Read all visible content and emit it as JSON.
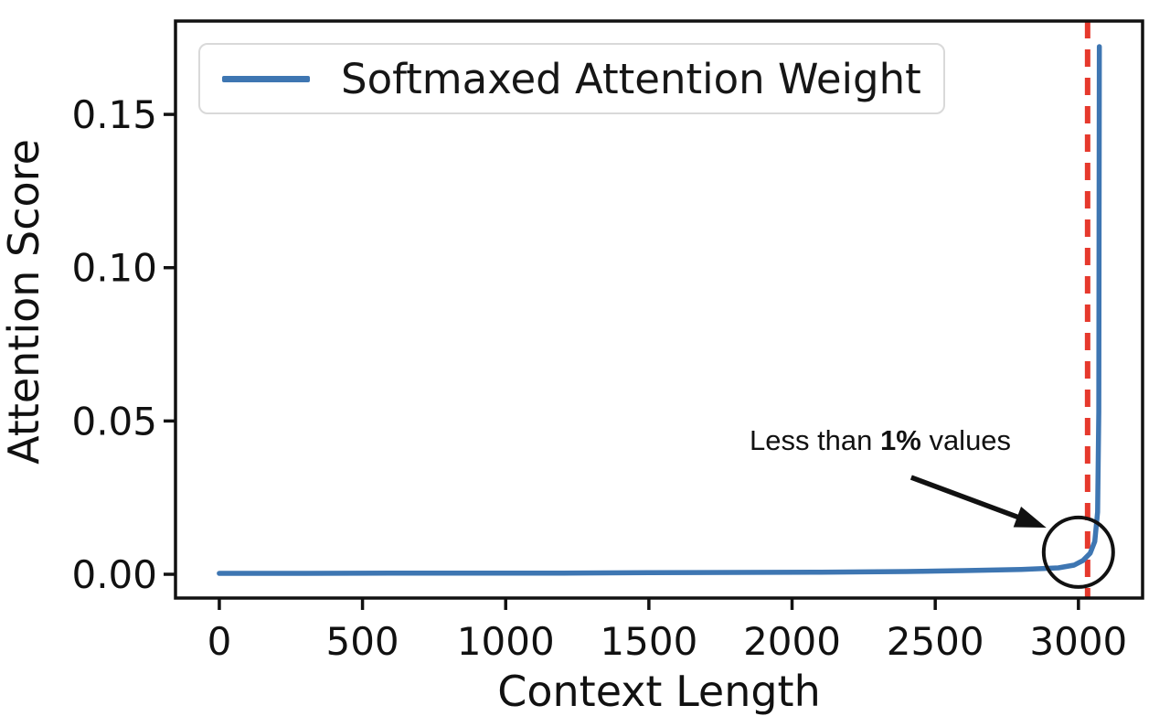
{
  "chart_data": {
    "type": "line",
    "title": "",
    "xlabel": "Context Length",
    "ylabel": "Attention Score",
    "xlim": [
      -153,
      3224
    ],
    "ylim": [
      -0.00775,
      0.18045
    ],
    "xticks": {
      "values": [
        0,
        500,
        1000,
        1500,
        2000,
        2500,
        3000
      ],
      "labels": [
        "0",
        "500",
        "1000",
        "1500",
        "2000",
        "2500",
        "3000"
      ]
    },
    "yticks": {
      "values": [
        0,
        0.05,
        0.1,
        0.15
      ],
      "labels": [
        "0.00",
        "0.05",
        "0.10",
        "0.15"
      ]
    },
    "grid": false,
    "legend": {
      "position": "upper-left",
      "entries": [
        {
          "label": "Softmaxed Attention Weight",
          "color": "#3e76b2"
        }
      ]
    },
    "series": [
      {
        "name": "Softmaxed Attention Weight",
        "color": "#3e76b2",
        "line_width": 5.5,
        "points": [
          [
            0,
            0.0003
          ],
          [
            300,
            0.0003
          ],
          [
            600,
            0.0004
          ],
          [
            900,
            0.0004
          ],
          [
            1200,
            0.0004
          ],
          [
            1500,
            0.0005
          ],
          [
            1800,
            0.0006
          ],
          [
            2100,
            0.0007
          ],
          [
            2400,
            0.0009
          ],
          [
            2600,
            0.0012
          ],
          [
            2800,
            0.0016
          ],
          [
            2930,
            0.0021
          ],
          [
            2985,
            0.003
          ],
          [
            3016,
            0.0045
          ],
          [
            3041,
            0.0069
          ],
          [
            3057,
            0.0107
          ],
          [
            3067,
            0.0203
          ],
          [
            3071,
            0.0531
          ],
          [
            3073,
            0.1721
          ]
        ]
      }
    ],
    "vline": {
      "x": 3032,
      "color": "#e6392d",
      "style": "dashed",
      "width": 6
    },
    "annotations": {
      "label": {
        "text_prefix": "Less than ",
        "text_bold": "1%",
        "text_suffix": " values",
        "x": 2308,
        "y": 0.0438
      },
      "arrow": {
        "x1": 2416,
        "y1": 0.0316,
        "x2": 2888,
        "y2": 0.0152,
        "color": "#111111"
      },
      "circle": {
        "x": 3000,
        "y": 0.0072,
        "radius_px": 38,
        "color": "#111111"
      }
    },
    "colors": {
      "axis": "#111111",
      "background": "#ffffff",
      "legend_border": "#d9d9d9"
    }
  }
}
